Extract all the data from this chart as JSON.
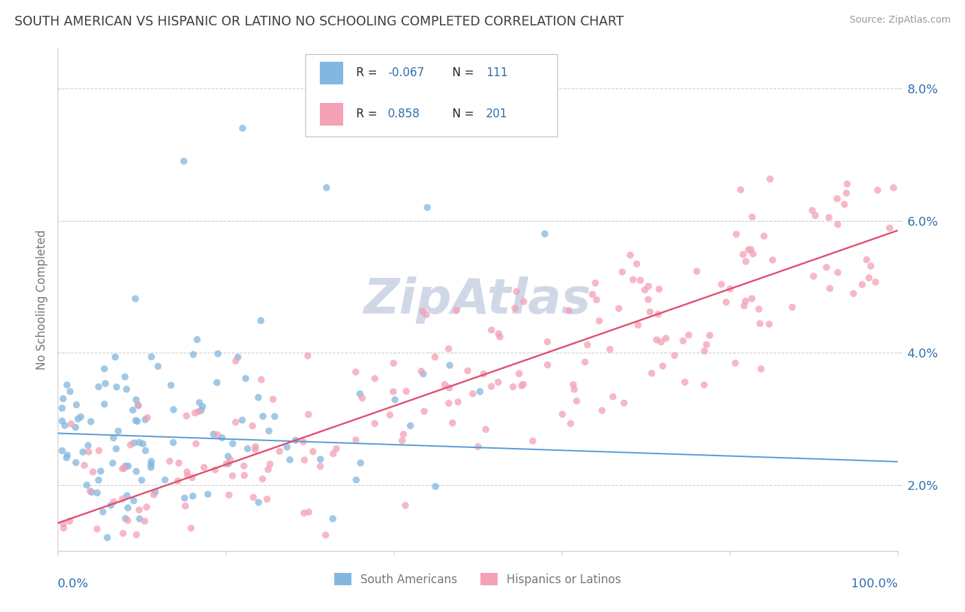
{
  "title": "SOUTH AMERICAN VS HISPANIC OR LATINO NO SCHOOLING COMPLETED CORRELATION CHART",
  "source": "Source: ZipAtlas.com",
  "ylabel": "No Schooling Completed",
  "ytick_vals": [
    2.0,
    4.0,
    6.0,
    8.0
  ],
  "xlim": [
    0,
    100
  ],
  "ylim": [
    1.0,
    8.6
  ],
  "blue_R": -0.067,
  "blue_N": 111,
  "pink_R": 0.858,
  "pink_N": 201,
  "blue_color": "#82b8e0",
  "pink_color": "#f4a0b5",
  "blue_line_color": "#5b9bd5",
  "pink_line_color": "#e05070",
  "legend_value_color": "#3070b0",
  "watermark": "ZipAtlas",
  "watermark_color": "#d0d8e8",
  "background_color": "#ffffff",
  "grid_color": "#cccccc",
  "title_color": "#404040",
  "axis_label_color": "#3070b0",
  "blue_line_y0": 2.78,
  "blue_line_y1": 2.35,
  "blue_line_dash_y1": 2.28,
  "pink_line_y0": 1.42,
  "pink_line_y1": 5.85
}
